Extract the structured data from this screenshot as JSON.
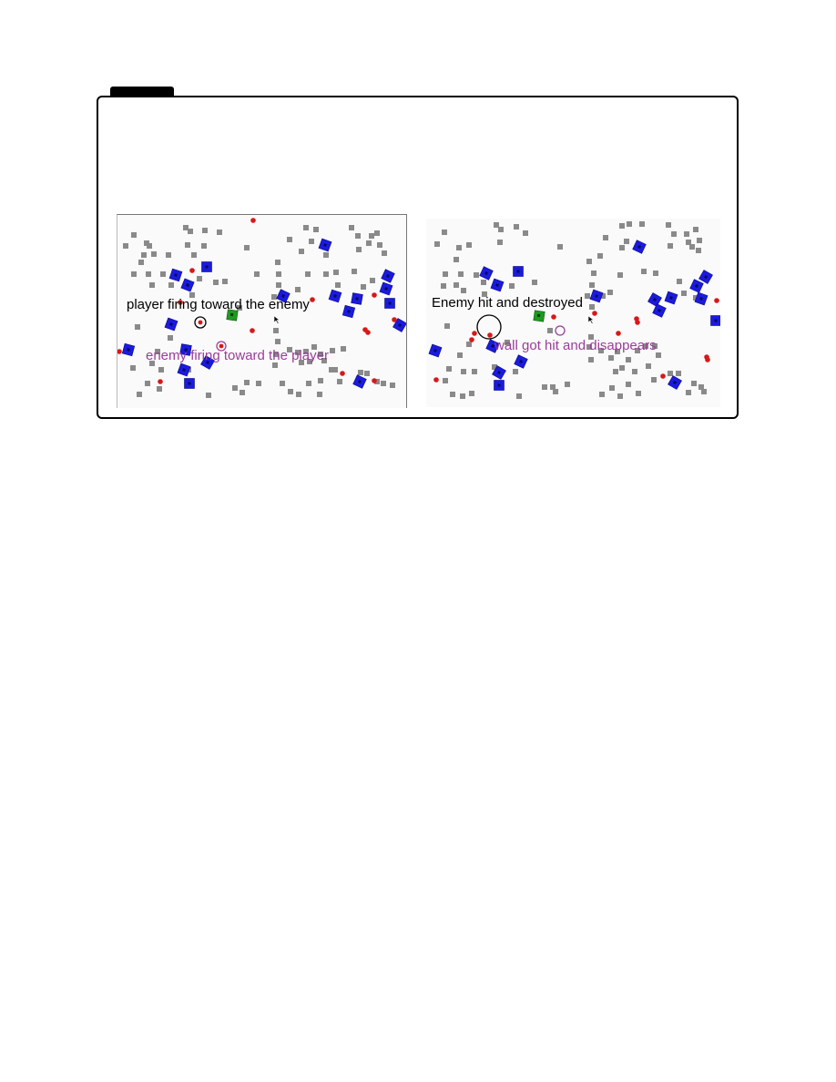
{
  "panels": [
    {
      "id": "left",
      "caption_player": "player firing toward the enemy",
      "caption_enemy": "enemy firing toward the player"
    },
    {
      "id": "right",
      "caption_hit": "Enemy hit and destroyed",
      "caption_wall": "wall got hit and disappears"
    }
  ],
  "colors": {
    "wall": "#8a8a8a",
    "enemy": "#1a1ae0",
    "player": "#1f9a1f",
    "bullet": "#d81818",
    "caption_black": "#000000",
    "caption_purple": "#9a3d9a"
  },
  "legend": {
    "gray-squares": "walls",
    "blue-squares": "enemy tanks",
    "green-square": "player tank",
    "red-dots": "bullets"
  }
}
